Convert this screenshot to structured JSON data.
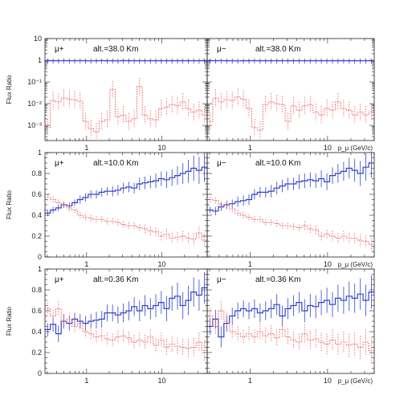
{
  "chart_data": [
    {
      "type": "line",
      "panel": "mu+ 38.0",
      "particle": "μ+",
      "altitude_label": "alt.=38.0 Km",
      "ylabel": "Flux Ratio",
      "xlabel": "",
      "xscale": "log",
      "yscale": "log",
      "xlim": [
        0.28,
        40
      ],
      "ylim": [
        0.0002,
        10
      ],
      "xticklabels": [
        "1",
        "10"
      ],
      "yticklabels": [
        "10",
        "1",
        "10⁻¹",
        "10⁻²",
        "10⁻³"
      ],
      "series": [
        {
          "color": "#3344cc",
          "style": "solid",
          "values": [
            0.95,
            0.95,
            0.95,
            0.96,
            0.95,
            0.95,
            0.96,
            0.95,
            0.94,
            0.95,
            0.96,
            0.95,
            0.95,
            0.94,
            0.96,
            0.95,
            0.95,
            0.95,
            0.95,
            0.95,
            0.95,
            0.95,
            0.95,
            0.95,
            0.95,
            0.95,
            0.95,
            0.95,
            0.95,
            0.95
          ],
          "err": 0.25
        },
        {
          "color": "#ee5555",
          "style": "dotted",
          "values": [
            0.0008,
            0.014,
            0.012,
            0.018,
            0.016,
            0.015,
            0.013,
            0.0015,
            0.0007,
            0.0005,
            0.0015,
            0.0018,
            0.045,
            0.0025,
            0.003,
            0.0015,
            0.002,
            0.062,
            0.003,
            0.002,
            0.0018,
            0.006,
            0.007,
            0.009,
            0.008,
            0.012,
            0.006,
            0.004,
            0.005,
            0.003
          ],
          "err_factor": 2.5
        }
      ]
    },
    {
      "type": "line",
      "panel": "mu- 38.0",
      "particle": "μ−",
      "altitude_label": "alt.=38.0 Km",
      "ylabel": "",
      "xlabel": "p_μ (GeV/c)",
      "xscale": "log",
      "yscale": "log",
      "xlim": [
        0.28,
        40
      ],
      "ylim": [
        0.0002,
        10
      ],
      "xticklabels": [
        "1",
        "10"
      ],
      "series": [
        {
          "color": "#3344cc",
          "style": "solid",
          "values": [
            0.95,
            0.95,
            0.96,
            0.95,
            0.95,
            0.94,
            0.95,
            0.95,
            0.96,
            0.95,
            0.95,
            0.95,
            0.95,
            0.95,
            0.95,
            0.95,
            0.95,
            0.95,
            0.95,
            0.95,
            0.95,
            0.95,
            0.95,
            0.95,
            0.95,
            0.95,
            0.95,
            0.95,
            0.95,
            0.95
          ],
          "err": 0.25
        },
        {
          "color": "#ee5555",
          "style": "dotted",
          "values": [
            0.0015,
            0.018,
            0.012,
            0.015,
            0.014,
            0.02,
            0.016,
            0.006,
            0.0008,
            0.0006,
            0.009,
            0.012,
            0.01,
            0.009,
            0.0015,
            0.008,
            0.005,
            0.008,
            0.009,
            0.004,
            0.003,
            0.006,
            0.005,
            0.012,
            0.006,
            0.005,
            0.003,
            0.004,
            0.003,
            0.004
          ],
          "err_factor": 2.5
        }
      ]
    },
    {
      "type": "line",
      "panel": "mu+ 10.0",
      "particle": "μ+",
      "altitude_label": "alt.=10.0 Km",
      "ylabel": "Flux Ratio",
      "xlabel": "",
      "xscale": "log",
      "yscale": "linear",
      "xlim": [
        0.28,
        40
      ],
      "ylim": [
        0,
        1
      ],
      "xticklabels": [
        "1",
        "10"
      ],
      "yticklabels": [
        "0",
        "0.2",
        "0.4",
        "0.6",
        "0.8",
        "1"
      ],
      "series": [
        {
          "color": "#3344cc",
          "style": "solid",
          "values": [
            0.42,
            0.45,
            0.47,
            0.5,
            0.49,
            0.52,
            0.55,
            0.57,
            0.6,
            0.6,
            0.62,
            0.63,
            0.63,
            0.64,
            0.66,
            0.67,
            0.66,
            0.7,
            0.71,
            0.72,
            0.73,
            0.75,
            0.74,
            0.76,
            0.78,
            0.8,
            0.82,
            0.85,
            0.83,
            0.86
          ],
          "err": [
            0.03,
            0.03,
            0.03,
            0.03,
            0.03,
            0.03,
            0.04,
            0.04,
            0.04,
            0.04,
            0.04,
            0.04,
            0.05,
            0.05,
            0.05,
            0.05,
            0.05,
            0.06,
            0.06,
            0.06,
            0.07,
            0.07,
            0.08,
            0.08,
            0.09,
            0.1,
            0.11,
            0.12,
            0.13,
            0.14
          ]
        },
        {
          "color": "#ee5555",
          "style": "dotted",
          "values": [
            0.57,
            0.55,
            0.52,
            0.5,
            0.47,
            0.45,
            0.4,
            0.38,
            0.37,
            0.36,
            0.36,
            0.34,
            0.34,
            0.33,
            0.31,
            0.3,
            0.3,
            0.28,
            0.27,
            0.25,
            0.24,
            0.2,
            0.22,
            0.18,
            0.19,
            0.2,
            0.18,
            0.17,
            0.23,
            0.16
          ],
          "err": [
            0.03,
            0.03,
            0.03,
            0.03,
            0.03,
            0.03,
            0.03,
            0.03,
            0.03,
            0.03,
            0.03,
            0.03,
            0.03,
            0.03,
            0.03,
            0.03,
            0.03,
            0.03,
            0.04,
            0.04,
            0.04,
            0.04,
            0.05,
            0.05,
            0.05,
            0.05,
            0.05,
            0.06,
            0.06,
            0.06
          ]
        }
      ]
    },
    {
      "type": "line",
      "panel": "mu- 10.0",
      "particle": "μ−",
      "altitude_label": "alt.=10.0 Km",
      "ylabel": "",
      "xlabel": "p_μ (GeV/c)",
      "xscale": "log",
      "yscale": "linear",
      "xlim": [
        0.28,
        40
      ],
      "ylim": [
        0,
        1
      ],
      "xticklabels": [
        "1",
        "10"
      ],
      "series": [
        {
          "color": "#3344cc",
          "style": "solid",
          "values": [
            0.45,
            0.44,
            0.48,
            0.5,
            0.51,
            0.53,
            0.54,
            0.55,
            0.6,
            0.62,
            0.62,
            0.63,
            0.66,
            0.68,
            0.7,
            0.7,
            0.72,
            0.73,
            0.74,
            0.73,
            0.75,
            0.72,
            0.78,
            0.8,
            0.82,
            0.85,
            0.83,
            0.8,
            0.86,
            0.9
          ],
          "err": [
            0.03,
            0.04,
            0.04,
            0.04,
            0.04,
            0.05,
            0.05,
            0.05,
            0.05,
            0.05,
            0.05,
            0.06,
            0.06,
            0.06,
            0.06,
            0.06,
            0.07,
            0.07,
            0.07,
            0.07,
            0.08,
            0.08,
            0.08,
            0.09,
            0.09,
            0.1,
            0.11,
            0.12,
            0.13,
            0.14
          ]
        },
        {
          "color": "#ee5555",
          "style": "dotted",
          "values": [
            0.55,
            0.54,
            0.5,
            0.5,
            0.46,
            0.42,
            0.4,
            0.38,
            0.36,
            0.36,
            0.33,
            0.33,
            0.32,
            0.3,
            0.3,
            0.29,
            0.28,
            0.3,
            0.27,
            0.26,
            0.2,
            0.22,
            0.2,
            0.18,
            0.2,
            0.18,
            0.18,
            0.16,
            0.15,
            0.12
          ],
          "err": [
            0.03,
            0.03,
            0.03,
            0.03,
            0.03,
            0.03,
            0.03,
            0.03,
            0.03,
            0.03,
            0.03,
            0.03,
            0.03,
            0.03,
            0.03,
            0.03,
            0.03,
            0.04,
            0.04,
            0.04,
            0.04,
            0.04,
            0.05,
            0.05,
            0.05,
            0.05,
            0.05,
            0.06,
            0.06,
            0.06
          ]
        }
      ]
    },
    {
      "type": "line",
      "panel": "mu+ 0.36",
      "particle": "μ+",
      "altitude_label": "alt.=0.36 Km",
      "ylabel": "Flux Ratio",
      "xlabel": "",
      "xscale": "log",
      "yscale": "linear",
      "xlim": [
        0.28,
        40
      ],
      "ylim": [
        0,
        1
      ],
      "xticklabels": [
        "1",
        "10"
      ],
      "yticklabels": [
        "0",
        "0.2",
        "0.4",
        "0.6",
        "0.8",
        "1"
      ],
      "series": [
        {
          "color": "#3344cc",
          "style": "solid",
          "values": [
            0.42,
            0.47,
            0.38,
            0.5,
            0.48,
            0.52,
            0.5,
            0.48,
            0.5,
            0.51,
            0.52,
            0.58,
            0.58,
            0.56,
            0.58,
            0.6,
            0.64,
            0.6,
            0.65,
            0.62,
            0.65,
            0.68,
            0.62,
            0.72,
            0.74,
            0.65,
            0.7,
            0.78,
            0.75,
            0.82
          ],
          "err": [
            0.06,
            0.07,
            0.08,
            0.07,
            0.07,
            0.06,
            0.07,
            0.07,
            0.07,
            0.08,
            0.08,
            0.08,
            0.08,
            0.08,
            0.09,
            0.09,
            0.09,
            0.1,
            0.1,
            0.1,
            0.11,
            0.11,
            0.12,
            0.12,
            0.13,
            0.13,
            0.14,
            0.14,
            0.15,
            0.15
          ]
        },
        {
          "color": "#ee5555",
          "style": "dotted",
          "values": [
            0.62,
            0.55,
            0.62,
            0.5,
            0.52,
            0.45,
            0.48,
            0.4,
            0.38,
            0.35,
            0.36,
            0.33,
            0.32,
            0.35,
            0.36,
            0.34,
            0.3,
            0.32,
            0.3,
            0.35,
            0.27,
            0.32,
            0.25,
            0.28,
            0.26,
            0.25,
            0.24,
            0.25,
            0.3,
            0.22
          ],
          "err": [
            0.06,
            0.06,
            0.07,
            0.06,
            0.06,
            0.06,
            0.06,
            0.06,
            0.06,
            0.06,
            0.06,
            0.06,
            0.06,
            0.06,
            0.06,
            0.06,
            0.07,
            0.07,
            0.07,
            0.07,
            0.07,
            0.07,
            0.08,
            0.08,
            0.08,
            0.08,
            0.09,
            0.09,
            0.09,
            0.1
          ]
        }
      ]
    },
    {
      "type": "line",
      "panel": "mu- 0.36",
      "particle": "μ−",
      "altitude_label": "alt.=0.36 Km",
      "ylabel": "",
      "xlabel": "p_μ (GeV/c)",
      "xscale": "log",
      "yscale": "linear",
      "xlim": [
        0.28,
        40
      ],
      "ylim": [
        0,
        1
      ],
      "xticklabels": [
        "1",
        "10"
      ],
      "series": [
        {
          "color": "#3344cc",
          "style": "solid",
          "values": [
            0.45,
            0.52,
            0.35,
            0.48,
            0.55,
            0.6,
            0.62,
            0.6,
            0.62,
            0.58,
            0.6,
            0.62,
            0.66,
            0.55,
            0.62,
            0.65,
            0.68,
            0.6,
            0.65,
            0.64,
            0.68,
            0.7,
            0.66,
            0.72,
            0.7,
            0.74,
            0.72,
            0.76,
            0.7,
            0.78
          ],
          "err": [
            0.08,
            0.09,
            0.1,
            0.08,
            0.08,
            0.08,
            0.08,
            0.08,
            0.09,
            0.09,
            0.09,
            0.09,
            0.1,
            0.1,
            0.1,
            0.1,
            0.1,
            0.11,
            0.11,
            0.11,
            0.12,
            0.12,
            0.12,
            0.13,
            0.13,
            0.14,
            0.14,
            0.15,
            0.15,
            0.16
          ]
        },
        {
          "color": "#ee5555",
          "style": "dotted",
          "values": [
            0.55,
            0.45,
            0.6,
            0.5,
            0.4,
            0.38,
            0.35,
            0.38,
            0.35,
            0.4,
            0.36,
            0.38,
            0.34,
            0.42,
            0.35,
            0.32,
            0.3,
            0.38,
            0.32,
            0.33,
            0.3,
            0.28,
            0.32,
            0.28,
            0.3,
            0.27,
            0.28,
            0.25,
            0.3,
            0.22
          ],
          "err": [
            0.08,
            0.08,
            0.09,
            0.08,
            0.07,
            0.07,
            0.07,
            0.07,
            0.07,
            0.08,
            0.08,
            0.08,
            0.08,
            0.08,
            0.08,
            0.08,
            0.08,
            0.09,
            0.09,
            0.09,
            0.09,
            0.1,
            0.1,
            0.1,
            0.1,
            0.11,
            0.11,
            0.11,
            0.12,
            0.12
          ]
        }
      ]
    }
  ]
}
